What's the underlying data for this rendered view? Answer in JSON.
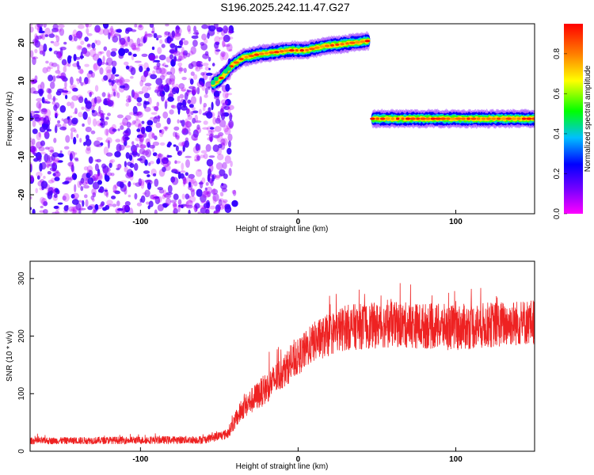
{
  "title": "S196.2025.242.11.47.G27",
  "chart_data": [
    {
      "type": "heatmap",
      "xlabel": "Height of straight line (km)",
      "ylabel": "Frequency (Hz)",
      "xlim": [
        -170,
        150
      ],
      "ylim": [
        -25,
        25
      ],
      "x_ticks": [
        "-100",
        "0",
        "100"
      ],
      "y_ticks": [
        "-20",
        "-10",
        "0",
        "10",
        "20"
      ],
      "colorbar": {
        "label": "Normalized spectral amplitude",
        "ticks": [
          "0.0",
          "0.2",
          "0.4",
          "0.6",
          "0.8"
        ],
        "range": [
          0,
          0.95
        ],
        "colormap": [
          "#ff00ff",
          "#7f00ff",
          "#0000ff",
          "#00bfff",
          "#00ff00",
          "#ffff00",
          "#ff7f00",
          "#ff0000"
        ]
      },
      "noise_region": {
        "x_range": [
          -170,
          -42
        ],
        "y_range": [
          -25,
          25
        ],
        "typical_amplitude": [
          0.05,
          0.2
        ]
      },
      "ridge": [
        {
          "x": -54,
          "y": 9
        },
        {
          "x": -48,
          "y": 11
        },
        {
          "x": -42,
          "y": 14
        },
        {
          "x": -35,
          "y": 16
        },
        {
          "x": -25,
          "y": 17
        },
        {
          "x": -15,
          "y": 17.5
        },
        {
          "x": -5,
          "y": 18
        },
        {
          "x": 5,
          "y": 18
        },
        {
          "x": 15,
          "y": 19
        },
        {
          "x": 25,
          "y": 19.5
        },
        {
          "x": 35,
          "y": 20
        },
        {
          "x": 45,
          "y": 20.5
        },
        {
          "x": 47,
          "y": 0
        },
        {
          "x": 60,
          "y": 0
        },
        {
          "x": 80,
          "y": 0
        },
        {
          "x": 100,
          "y": 0
        },
        {
          "x": 120,
          "y": 0
        },
        {
          "x": 140,
          "y": 0
        },
        {
          "x": 150,
          "y": 0
        }
      ]
    },
    {
      "type": "line",
      "xlabel": "Height of straight line (km)",
      "ylabel": "SNR (10 * v/v)",
      "xlim": [
        -170,
        150
      ],
      "ylim": [
        0,
        330
      ],
      "x_ticks": [
        "-100",
        "0",
        "100"
      ],
      "y_ticks": [
        "0",
        "100",
        "200",
        "300"
      ],
      "color": "#ee2222",
      "trend": [
        {
          "x": -170,
          "y": 18,
          "spread": 12
        },
        {
          "x": -60,
          "y": 20,
          "spread": 14
        },
        {
          "x": -45,
          "y": 30,
          "spread": 18
        },
        {
          "x": -35,
          "y": 75,
          "spread": 40
        },
        {
          "x": -20,
          "y": 110,
          "spread": 55
        },
        {
          "x": -5,
          "y": 150,
          "spread": 60
        },
        {
          "x": 10,
          "y": 190,
          "spread": 70
        },
        {
          "x": 30,
          "y": 215,
          "spread": 80
        },
        {
          "x": 60,
          "y": 220,
          "spread": 80
        },
        {
          "x": 100,
          "y": 215,
          "spread": 80
        },
        {
          "x": 150,
          "y": 225,
          "spread": 80
        }
      ]
    }
  ]
}
